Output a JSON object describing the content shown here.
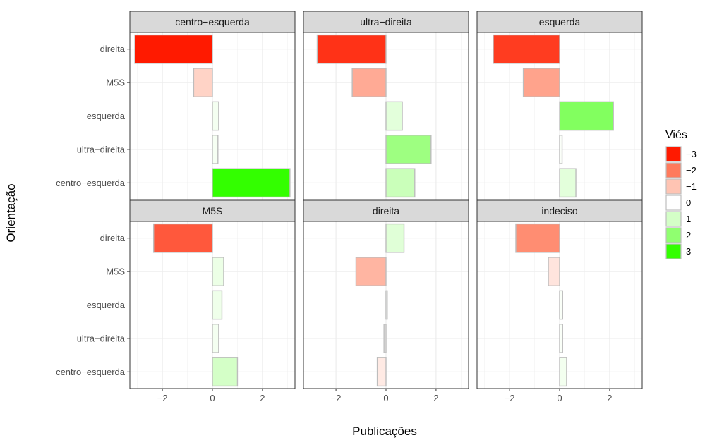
{
  "chart_data": {
    "type": "bar",
    "orientation": "horizontal",
    "xlabel": "Publicações",
    "ylabel": "Orientação",
    "xlim": [
      -3.3,
      3.3
    ],
    "x_ticks": [
      -2,
      0,
      2
    ],
    "x_tick_labels": [
      "−2",
      "0",
      "2"
    ],
    "grid": true,
    "categories": [
      "direita",
      "M5S",
      "esquerda",
      "ultra−direita",
      "centro−esquerda"
    ],
    "legend": {
      "title": "Viés",
      "position": "right",
      "entries": [
        {
          "label": "−3",
          "color": "#FF1A00"
        },
        {
          "label": "−2",
          "color": "#FF7A5C"
        },
        {
          "label": "−1",
          "color": "#FFC4B3"
        },
        {
          "label": "0",
          "color": "#FFFFFF"
        },
        {
          "label": "1",
          "color": "#D4FFC7"
        },
        {
          "label": "2",
          "color": "#90FF70"
        },
        {
          "label": "3",
          "color": "#33FF00"
        }
      ]
    },
    "panels": [
      {
        "title": "centro−esquerda",
        "values": [
          -3.1,
          -0.75,
          0.25,
          0.22,
          3.1
        ]
      },
      {
        "title": "ultra−direita",
        "values": [
          -2.75,
          -1.35,
          0.65,
          1.8,
          1.15
        ]
      },
      {
        "title": "esquerda",
        "values": [
          -2.65,
          -1.45,
          2.15,
          0.1,
          0.65
        ]
      },
      {
        "title": "M5S",
        "values": [
          -2.35,
          0.45,
          0.38,
          0.25,
          1.0
        ]
      },
      {
        "title": "direita",
        "values": [
          0.72,
          -1.2,
          0.05,
          -0.08,
          -0.35
        ]
      },
      {
        "title": "indeciso",
        "values": [
          -1.75,
          -0.45,
          0.12,
          0.12,
          0.28
        ]
      }
    ]
  }
}
